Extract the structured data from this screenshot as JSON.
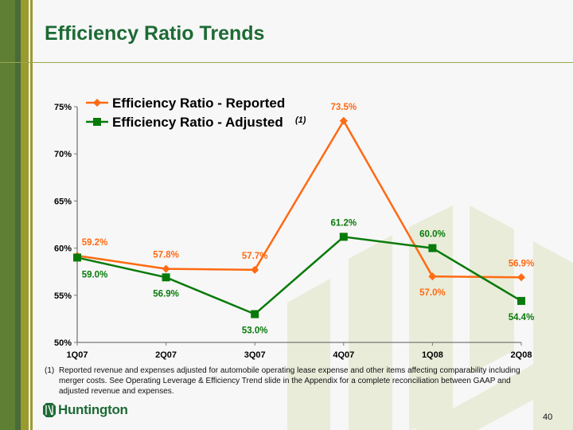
{
  "slide": {
    "title": "Efficiency Ratio Trends",
    "page_number": "40",
    "brand": "Huntington",
    "footnote": {
      "marker": "(1)",
      "text": "Reported revenue and expenses adjusted for automobile operating lease expense and other items affecting comparability including merger costs.  See Operating Leverage & Efficiency Trend slide in the Appendix for a complete reconciliation between GAAP and adjusted revenue and expenses."
    },
    "colors": {
      "title": "#1d6a35",
      "reported": "#ff6a13",
      "adjusted": "#087a0a"
    }
  },
  "chart_data": {
    "type": "line",
    "title": "",
    "xlabel": "",
    "ylabel": "",
    "categories": [
      "1Q07",
      "2Q07",
      "3Q07",
      "4Q07",
      "1Q08",
      "2Q08"
    ],
    "ylim": [
      50,
      75
    ],
    "yticks": [
      50,
      55,
      60,
      65,
      70,
      75
    ],
    "ytick_labels": [
      "50%",
      "55%",
      "60%",
      "65%",
      "70%",
      "75%"
    ],
    "grid": false,
    "legend_position": "top-left",
    "series": [
      {
        "name": "Efficiency Ratio - Reported",
        "marker": "diamond",
        "color": "#ff6a13",
        "values": [
          59.2,
          57.8,
          57.7,
          73.5,
          57.0,
          56.9
        ],
        "labels": [
          "59.2%",
          "57.8%",
          "57.7%",
          "73.5%",
          "57.0%",
          "56.9%"
        ],
        "label_pos": [
          "above",
          "above",
          "above",
          "above",
          "below",
          "above"
        ]
      },
      {
        "name": "Efficiency Ratio - Adjusted",
        "name_superscript": "(1)",
        "marker": "square",
        "color": "#087a0a",
        "values": [
          59.0,
          56.9,
          53.0,
          61.2,
          60.0,
          54.4
        ],
        "labels": [
          "59.0%",
          "56.9%",
          "53.0%",
          "61.2%",
          "60.0%",
          "54.4%"
        ],
        "label_pos": [
          "below",
          "below",
          "below",
          "above",
          "above",
          "below"
        ]
      }
    ]
  }
}
